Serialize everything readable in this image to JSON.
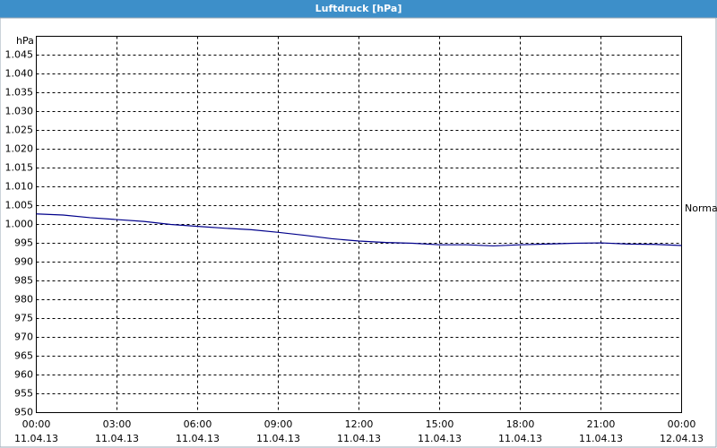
{
  "chart_data": {
    "type": "line",
    "title": "Luftdruck [hPa]",
    "y_label": "hPa",
    "annotation": "Normal",
    "x": [
      0,
      1,
      2,
      3,
      4,
      5,
      6,
      7,
      8,
      9,
      10,
      11,
      12,
      13,
      14,
      15,
      16,
      17,
      18,
      19,
      20,
      21,
      22,
      23,
      24
    ],
    "series": [
      {
        "name": "Luftdruck",
        "color": "#00008b",
        "values": [
          1002.8,
          1002.5,
          1001.8,
          1001.3,
          1000.8,
          1000.0,
          999.5,
          999.0,
          998.6,
          997.9,
          997.1,
          996.2,
          995.6,
          995.2,
          995.0,
          994.6,
          994.6,
          994.3,
          994.6,
          994.8,
          995.0,
          995.1,
          994.8,
          994.7,
          994.4
        ]
      }
    ],
    "xlim": [
      0,
      24
    ],
    "xticks": [
      {
        "value": 0,
        "label": "00:00"
      },
      {
        "value": 3,
        "label": "03:00"
      },
      {
        "value": 6,
        "label": "06:00"
      },
      {
        "value": 9,
        "label": "09:00"
      },
      {
        "value": 12,
        "label": "12:00"
      },
      {
        "value": 15,
        "label": "15:00"
      },
      {
        "value": 18,
        "label": "18:00"
      },
      {
        "value": 21,
        "label": "21:00"
      },
      {
        "value": 24,
        "label": "00:00"
      }
    ],
    "xtick_dates": [
      "11.04.13",
      "11.04.13",
      "11.04.13",
      "11.04.13",
      "11.04.13",
      "11.04.13",
      "11.04.13",
      "11.04.13",
      "12.04.13"
    ],
    "ylim": [
      950,
      1050
    ],
    "yticks": [
      950,
      955,
      960,
      965,
      970,
      975,
      980,
      985,
      990,
      995,
      {
        "value": 1000,
        "label": "1.000"
      },
      {
        "value": 1005,
        "label": "1.005"
      },
      {
        "value": 1010,
        "label": "1.010"
      },
      {
        "value": 1015,
        "label": "1.015"
      },
      {
        "value": 1020,
        "label": "1.020"
      },
      {
        "value": 1025,
        "label": "1.025"
      },
      {
        "value": 1030,
        "label": "1.030"
      },
      {
        "value": 1035,
        "label": "1.035"
      },
      {
        "value": 1040,
        "label": "1.040"
      },
      {
        "value": 1045,
        "label": "1.045"
      }
    ],
    "grid": true
  }
}
